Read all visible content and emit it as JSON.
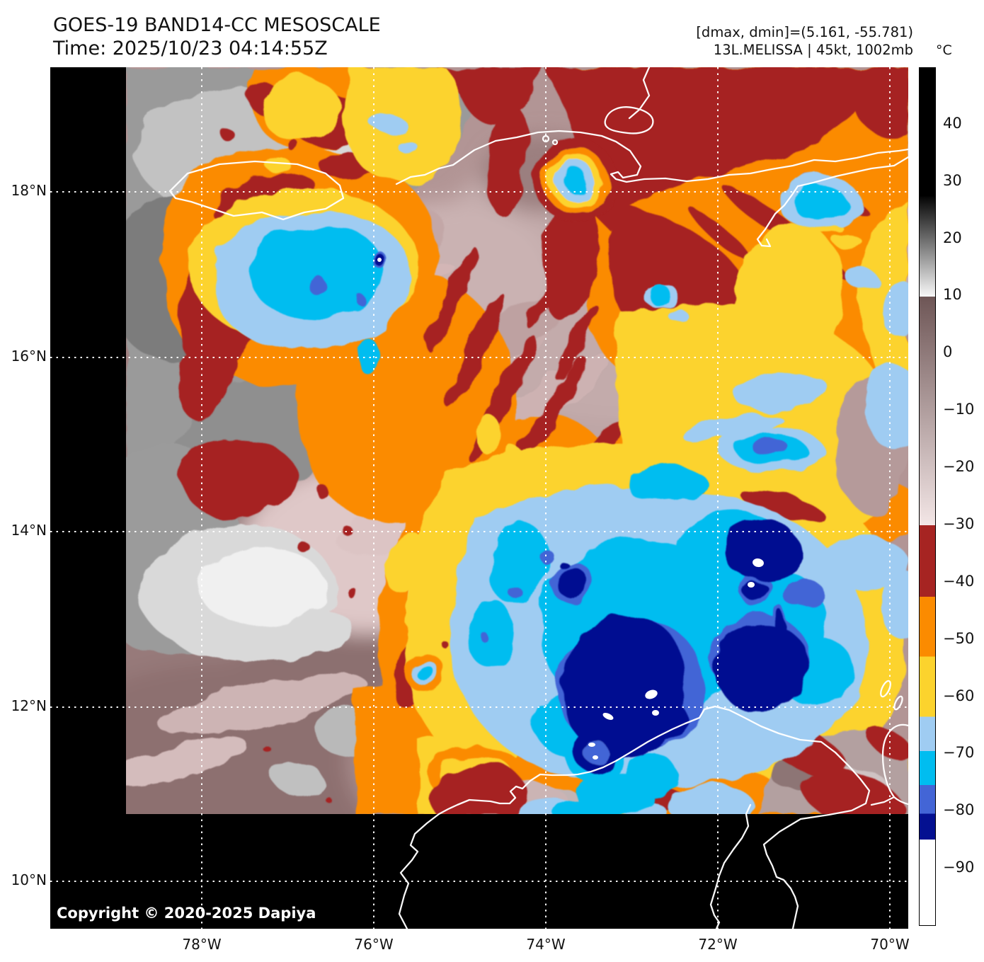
{
  "header": {
    "title": "GOES-19 BAND14-CC MESOSCALE",
    "time": "Time: 2025/10/23 04:14:55Z",
    "range_info": "[dmax, dmin]=(5.161, -55.781)",
    "storm_info": "13L.MELISSA | 45kt, 1002mb"
  },
  "footer": {
    "copyright": "Copyright © 2020-2025 Dapiya"
  },
  "axes": {
    "lat_labels": [
      "18°N",
      "16°N",
      "14°N",
      "12°N",
      "10°N"
    ],
    "lon_labels": [
      "78°W",
      "76°W",
      "74°W",
      "72°W",
      "70°W"
    ]
  },
  "colorbar": {
    "unit": "°C",
    "tick_labels": [
      "40",
      "30",
      "20",
      "10",
      "0",
      "−10",
      "−20",
      "−30",
      "−40",
      "−50",
      "−60",
      "−70",
      "−80",
      "−90"
    ],
    "tick_values": [
      40,
      30,
      20,
      10,
      0,
      -10,
      -20,
      -30,
      -40,
      -50,
      -60,
      -70,
      -80,
      -90
    ],
    "range_top_c": 50,
    "range_bottom_c": -100,
    "segments": [
      {
        "from_c": 50,
        "to_c": 27.5,
        "color": "#000000"
      },
      {
        "from_c": 27.5,
        "to_c": 10,
        "gradient_from": "#050505",
        "gradient_to": "#f8f8f8"
      },
      {
        "from_c": 10,
        "to_c": -30,
        "gradient_from": "#6e5656",
        "gradient_to": "#f3e6e6"
      },
      {
        "from_c": -30,
        "to_c": -42.5,
        "color": "#a62422"
      },
      {
        "from_c": -42.5,
        "to_c": -53,
        "color": "#fb8b00"
      },
      {
        "from_c": -53,
        "to_c": -63.5,
        "color": "#fcd32d"
      },
      {
        "from_c": -63.5,
        "to_c": -69.5,
        "color": "#9fccf2"
      },
      {
        "from_c": -69.5,
        "to_c": -75.5,
        "color": "#00bdf0"
      },
      {
        "from_c": -75.5,
        "to_c": -80.5,
        "color": "#4365d6"
      },
      {
        "from_c": -80.5,
        "to_c": -85,
        "color": "#041091"
      },
      {
        "from_c": -85,
        "to_c": -100,
        "color": "#ffffff"
      }
    ]
  }
}
